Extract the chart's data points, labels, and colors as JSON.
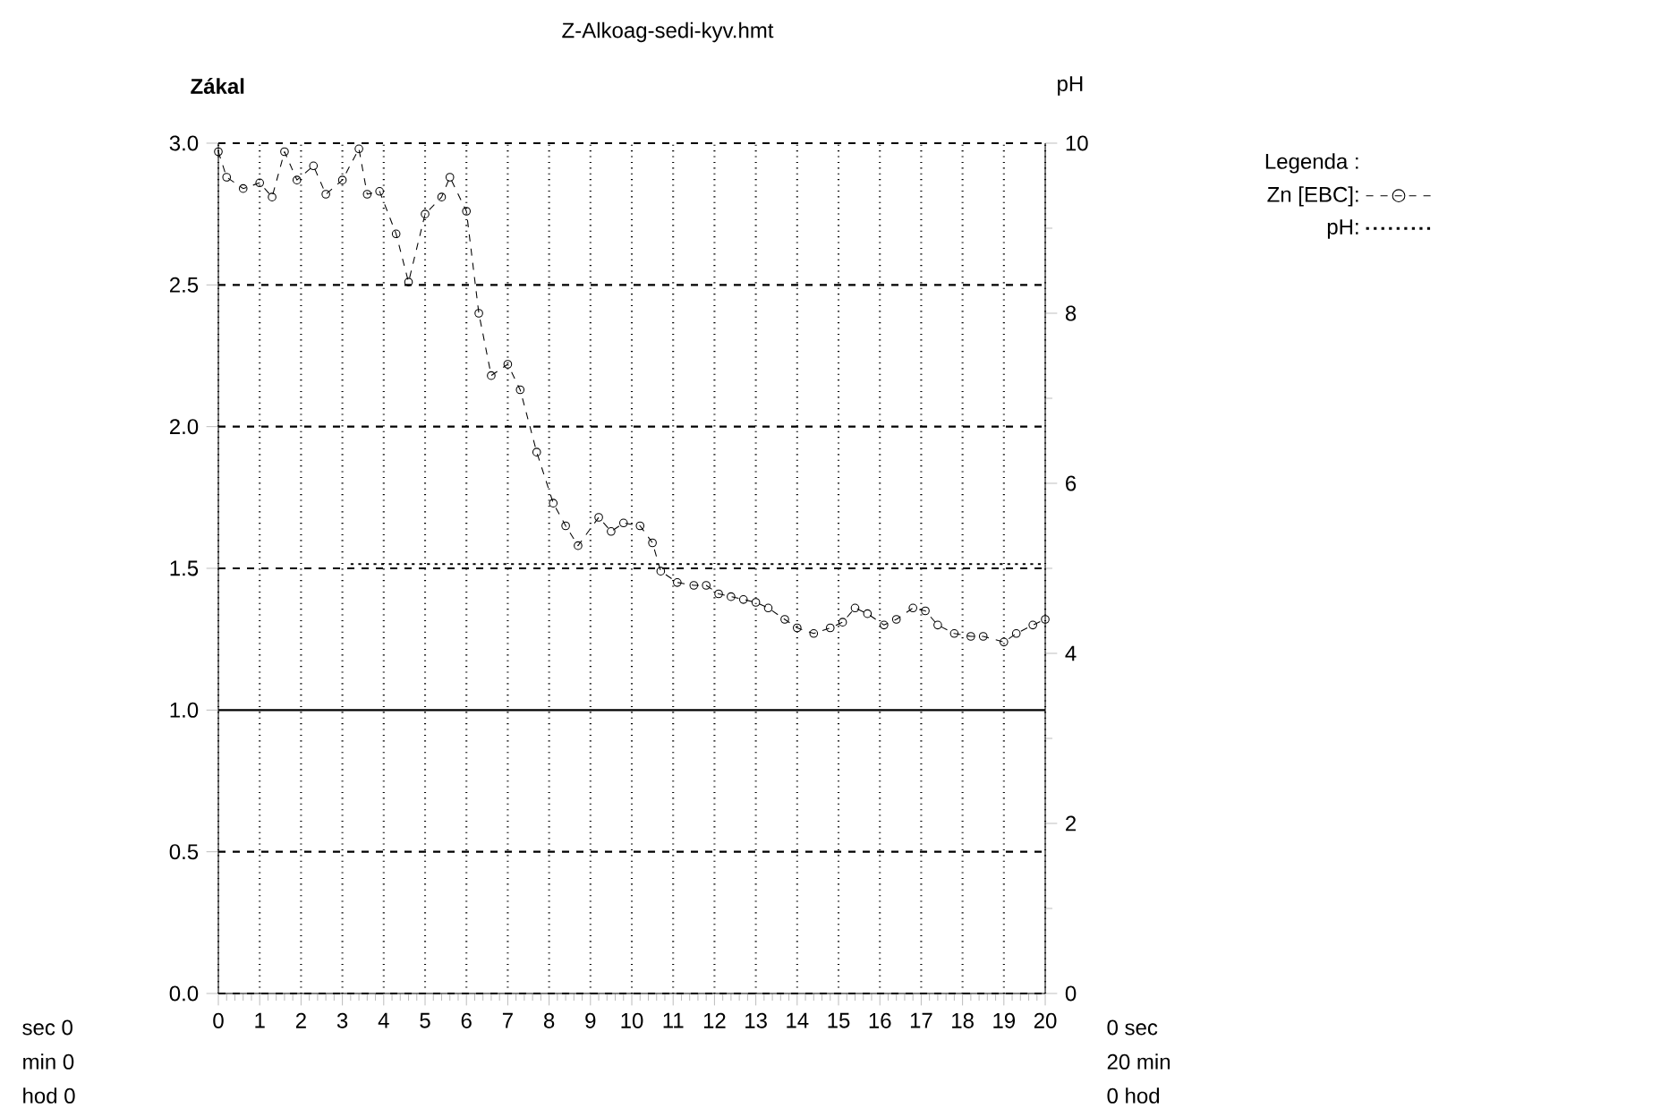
{
  "chart_data": {
    "type": "line",
    "title": "Z-Alkoag-sedi-kyv.hmt",
    "ylabel": "Zákal",
    "y2label": "pH",
    "legend_title": "Legenda :",
    "legend": "top right",
    "xlim": [
      0,
      20
    ],
    "xticks": [
      0,
      1,
      2,
      3,
      4,
      5,
      6,
      7,
      8,
      9,
      10,
      11,
      12,
      13,
      14,
      15,
      16,
      17,
      18,
      19,
      20
    ],
    "ylim": [
      0,
      3
    ],
    "yticks": [
      {
        "value": 0,
        "label": "0.0"
      },
      {
        "value": 0.5,
        "label": "0.5"
      },
      {
        "value": 1,
        "label": "1.0"
      },
      {
        "value": 1.5,
        "label": "1.5"
      },
      {
        "value": 2,
        "label": "2.0"
      },
      {
        "value": 2.5,
        "label": "2.5"
      },
      {
        "value": 3,
        "label": "3.0"
      }
    ],
    "y2lim": [
      0,
      10
    ],
    "y2ticks": [
      0,
      2,
      4,
      6,
      8,
      10
    ],
    "grid": true,
    "ref_lines": [
      {
        "axis": "y",
        "value": 1.0,
        "color": "#000000",
        "line_style": "solid"
      }
    ],
    "annotations": [
      "sec 0",
      "min 0",
      "hod 0",
      "0 sec",
      "20 min",
      "0 hod"
    ],
    "series": [
      {
        "name": "Zn [EBC]:",
        "color": "#000000",
        "marker": "circle",
        "line_style": "dashed",
        "x": [
          0.0,
          0.2,
          0.6,
          1.0,
          1.3,
          1.6,
          1.9,
          2.3,
          2.6,
          3.0,
          3.4,
          3.6,
          3.9,
          4.3,
          4.6,
          5.0,
          5.4,
          5.6,
          6.0,
          6.3,
          6.6,
          7.0,
          7.3,
          7.7,
          8.1,
          8.4,
          8.7,
          9.2,
          9.5,
          9.8,
          10.2,
          10.5,
          10.7,
          11.1,
          11.5,
          11.8,
          12.1,
          12.4,
          12.7,
          13.0,
          13.3,
          13.7,
          14.0,
          14.4,
          14.8,
          15.1,
          15.4,
          15.7,
          16.1,
          16.4,
          16.8,
          17.1,
          17.4,
          17.8,
          18.2,
          18.5,
          19.0,
          19.3,
          19.7,
          20.0
        ],
        "values": [
          2.97,
          2.88,
          2.84,
          2.86,
          2.81,
          2.97,
          2.87,
          2.92,
          2.82,
          2.87,
          2.98,
          2.82,
          2.83,
          2.68,
          2.51,
          2.75,
          2.81,
          2.88,
          2.76,
          2.4,
          2.18,
          2.22,
          2.13,
          1.91,
          1.73,
          1.65,
          1.58,
          1.68,
          1.63,
          1.66,
          1.65,
          1.59,
          1.49,
          1.45,
          1.44,
          1.44,
          1.41,
          1.4,
          1.39,
          1.38,
          1.36,
          1.32,
          1.29,
          1.27,
          1.29,
          1.31,
          1.36,
          1.34,
          1.3,
          1.32,
          1.36,
          1.35,
          1.3,
          1.27,
          1.26,
          1.26,
          1.24,
          1.27,
          1.3,
          1.32
        ]
      },
      {
        "name": "pH:",
        "color": "#000000",
        "axis": "y2",
        "marker": "none",
        "line_style": "dotted",
        "x": [
          3.2,
          20
        ],
        "values": [
          5.05,
          5.05
        ]
      }
    ]
  }
}
